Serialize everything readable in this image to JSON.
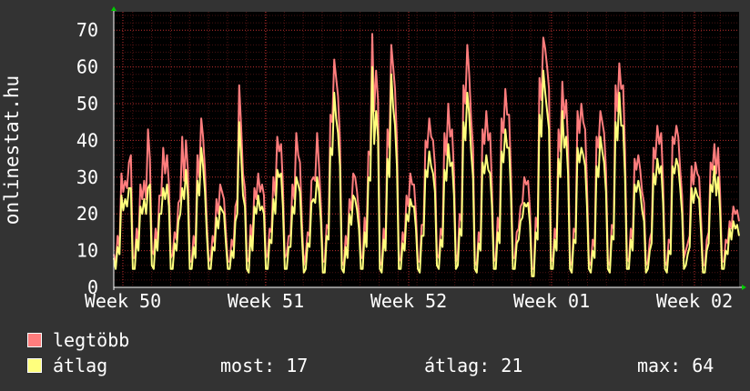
{
  "chart_data": {
    "type": "line",
    "ylabel": "onlinestat.hu",
    "ylim": [
      0,
      75
    ],
    "yticks": [
      0,
      10,
      20,
      30,
      40,
      50,
      60,
      70
    ],
    "xtick_labels": [
      "Week 50",
      "Week 51",
      "Week 52",
      "Week 01",
      "Week 02"
    ],
    "grid": true,
    "colors": {
      "background": "#333333",
      "plot_bg": "#000000",
      "grid": "#7a1f1f",
      "legtobb": "#ff7d7d",
      "atlag": "#ffff7d"
    },
    "series": [
      {
        "name": "legtöbb",
        "daily_peaks": [
          9,
          43,
          28,
          38,
          46,
          28,
          55,
          31,
          41,
          42,
          29,
          62,
          31,
          69,
          66,
          31,
          46,
          50,
          66,
          48,
          54,
          30,
          68,
          56,
          50,
          48,
          61,
          36,
          44,
          44,
          34,
          39,
          22
        ],
        "values": [
          9,
          6,
          14,
          11,
          31,
          26,
          29,
          27,
          34,
          36,
          8,
          8,
          16,
          12,
          28,
          24,
          29,
          24,
          43,
          35,
          10,
          9,
          16,
          12,
          25,
          25,
          38,
          31,
          36,
          28,
          8,
          9,
          15,
          13,
          23,
          24,
          41,
          29,
          40,
          32,
          7,
          7,
          14,
          11,
          36,
          30,
          46,
          41,
          32,
          17,
          7,
          8,
          14,
          12,
          24,
          20,
          28,
          26,
          24,
          15,
          7,
          7,
          13,
          11,
          22,
          24,
          55,
          44,
          31,
          27,
          8,
          7,
          17,
          13,
          27,
          24,
          31,
          26,
          28,
          25,
          8,
          9,
          16,
          15,
          30,
          25,
          41,
          37,
          39,
          28,
          8,
          9,
          14,
          14,
          28,
          24,
          42,
          36,
          34,
          18,
          6,
          9,
          15,
          14,
          29,
          30,
          29,
          42,
          33,
          22,
          7,
          7,
          17,
          16,
          47,
          45,
          62,
          57,
          52,
          40,
          7,
          6,
          14,
          11,
          24,
          21,
          31,
          30,
          26,
          20,
          8,
          8,
          19,
          14,
          37,
          36,
          69,
          48,
          59,
          51,
          7,
          6,
          16,
          12,
          43,
          38,
          66,
          60,
          54,
          40,
          7,
          8,
          15,
          12,
          25,
          22,
          31,
          28,
          28,
          20,
          7,
          7,
          17,
          17,
          40,
          38,
          46,
          41,
          40,
          33,
          9,
          8,
          16,
          14,
          42,
          36,
          50,
          41,
          43,
          31,
          7,
          9,
          20,
          18,
          55,
          50,
          66,
          58,
          46,
          38,
          7,
          6,
          15,
          12,
          43,
          39,
          48,
          40,
          42,
          27,
          7,
          8,
          19,
          15,
          46,
          42,
          54,
          47,
          47,
          31,
          8,
          8,
          15,
          16,
          22,
          23,
          30,
          28,
          29,
          21,
          5,
          5,
          19,
          16,
          57,
          51,
          68,
          65,
          60,
          54,
          8,
          7,
          16,
          13,
          43,
          37,
          56,
          46,
          51,
          39,
          7,
          6,
          16,
          15,
          48,
          42,
          50,
          45,
          43,
          28,
          7,
          6,
          13,
          11,
          41,
          38,
          48,
          45,
          42,
          32,
          7,
          6,
          17,
          16,
          55,
          48,
          61,
          54,
          55,
          37,
          8,
          7,
          16,
          13,
          35,
          32,
          36,
          32,
          26,
          23,
          6,
          7,
          13,
          15,
          38,
          35,
          44,
          39,
          42,
          29,
          7,
          6,
          13,
          12,
          41,
          39,
          44,
          41,
          32,
          25,
          8,
          10,
          12,
          14,
          33,
          28,
          34,
          31,
          30,
          19,
          6,
          6,
          13,
          15,
          34,
          32,
          39,
          31,
          38,
          26,
          7,
          7,
          13,
          12,
          18,
          16,
          22,
          20,
          21,
          18
        ]
      },
      {
        "name": "átlag",
        "daily_peaks": [
          8,
          27,
          24,
          29,
          38,
          22,
          45,
          25,
          32,
          30,
          23,
          53,
          25,
          60,
          58,
          24,
          37,
          39,
          53,
          36,
          43,
          23,
          59,
          48,
          38,
          41,
          53,
          29,
          35,
          35,
          27,
          33,
          18
        ],
        "values": [
          8,
          5,
          11,
          9,
          25,
          21,
          24,
          22,
          27,
          27,
          5,
          5,
          13,
          10,
          22,
          20,
          24,
          20,
          27,
          28,
          6,
          5,
          13,
          10,
          20,
          20,
          27,
          24,
          28,
          22,
          5,
          5,
          12,
          10,
          18,
          20,
          27,
          24,
          32,
          25,
          5,
          5,
          11,
          8,
          29,
          25,
          38,
          33,
          26,
          14,
          5,
          5,
          11,
          10,
          19,
          16,
          22,
          21,
          20,
          12,
          5,
          5,
          10,
          8,
          18,
          20,
          45,
          36,
          25,
          22,
          5,
          4,
          14,
          10,
          22,
          20,
          25,
          21,
          22,
          20,
          5,
          5,
          13,
          12,
          24,
          20,
          32,
          30,
          31,
          22,
          5,
          5,
          11,
          11,
          22,
          20,
          30,
          28,
          26,
          14,
          4,
          5,
          12,
          11,
          23,
          24,
          23,
          30,
          26,
          18,
          4,
          4,
          14,
          13,
          38,
          36,
          53,
          46,
          42,
          33,
          5,
          4,
          11,
          8,
          20,
          17,
          25,
          24,
          21,
          16,
          5,
          5,
          15,
          11,
          30,
          29,
          60,
          39,
          48,
          41,
          5,
          4,
          13,
          10,
          35,
          30,
          58,
          49,
          44,
          33,
          5,
          5,
          12,
          10,
          20,
          18,
          24,
          22,
          22,
          16,
          5,
          4,
          14,
          14,
          32,
          30,
          37,
          33,
          31,
          26,
          6,
          5,
          13,
          11,
          32,
          29,
          39,
          33,
          34,
          25,
          5,
          6,
          16,
          14,
          45,
          40,
          53,
          47,
          37,
          30,
          5,
          4,
          12,
          10,
          34,
          31,
          36,
          32,
          31,
          22,
          5,
          5,
          15,
          12,
          37,
          34,
          43,
          38,
          38,
          25,
          5,
          5,
          12,
          13,
          18,
          19,
          23,
          22,
          23,
          17,
          3,
          3,
          15,
          13,
          47,
          41,
          59,
          53,
          48,
          43,
          5,
          5,
          13,
          10,
          35,
          30,
          48,
          38,
          41,
          31,
          5,
          4,
          13,
          12,
          38,
          34,
          38,
          36,
          33,
          22,
          5,
          4,
          10,
          8,
          33,
          30,
          41,
          37,
          34,
          26,
          5,
          4,
          14,
          13,
          45,
          40,
          53,
          44,
          44,
          30,
          5,
          5,
          13,
          10,
          28,
          26,
          29,
          26,
          21,
          18,
          4,
          5,
          10,
          12,
          31,
          28,
          35,
          31,
          33,
          23,
          5,
          4,
          10,
          9,
          33,
          31,
          35,
          33,
          27,
          20,
          5,
          6,
          9,
          11,
          27,
          23,
          27,
          25,
          24,
          15,
          4,
          4,
          10,
          12,
          28,
          26,
          33,
          25,
          30,
          21,
          5,
          5,
          10,
          9,
          16,
          13,
          18,
          16,
          17,
          14
        ]
      }
    ]
  },
  "legend": [
    {
      "label": "legtöbb",
      "color": "#ff7d7d"
    },
    {
      "label": "átlag",
      "color": "#ffff7d"
    }
  ],
  "stats": {
    "most": "most: 17",
    "atlag": "átlag: 21",
    "max": "max: 64"
  }
}
